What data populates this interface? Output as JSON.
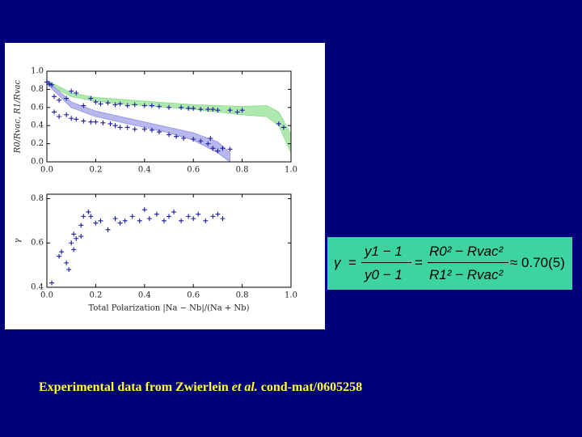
{
  "chart_data": [
    {
      "type": "scatter",
      "y_label": "R0/Rvac, R1/Rvac",
      "xlim": [
        0,
        1
      ],
      "ylim": [
        0,
        1
      ],
      "xticks": [
        {
          "value": 0,
          "label": "0.0"
        },
        {
          "value": 0.2,
          "label": "0.2"
        },
        {
          "value": 0.4,
          "label": "0.4"
        },
        {
          "value": 0.6,
          "label": "0.6"
        },
        {
          "value": 0.8,
          "label": "0.8"
        },
        {
          "value": 1,
          "label": "1.0"
        }
      ],
      "yticks": [
        {
          "value": 0,
          "label": "0.0"
        },
        {
          "value": 0.2,
          "label": "0.2"
        },
        {
          "value": 0.4,
          "label": "0.4"
        },
        {
          "value": 0.6,
          "label": "0.6"
        },
        {
          "value": 0.8,
          "label": "0.8"
        },
        {
          "value": 1,
          "label": "1.0"
        }
      ],
      "bands": [
        {
          "color": "#8fe08f",
          "x": [
            0,
            0.1,
            0.2,
            0.3,
            0.4,
            0.5,
            0.6,
            0.7,
            0.8,
            0.9,
            0.95,
            1.0
          ],
          "lower": [
            0.86,
            0.72,
            0.67,
            0.64,
            0.62,
            0.6,
            0.58,
            0.55,
            0.52,
            0.5,
            0.4,
            0.1
          ],
          "upper": [
            0.9,
            0.76,
            0.71,
            0.69,
            0.67,
            0.65,
            0.63,
            0.62,
            0.61,
            0.62,
            0.55,
            0.3
          ]
        },
        {
          "color": "#9a9ae6",
          "x": [
            0,
            0.1,
            0.2,
            0.3,
            0.4,
            0.5,
            0.6,
            0.7,
            0.75
          ],
          "lower": [
            0.86,
            0.6,
            0.5,
            0.44,
            0.38,
            0.32,
            0.24,
            0.1,
            0.0
          ],
          "upper": [
            0.9,
            0.66,
            0.56,
            0.5,
            0.44,
            0.38,
            0.32,
            0.22,
            0.1
          ]
        }
      ],
      "series": [
        {
          "color": "#1c1ca0",
          "x": [
            0.0,
            0.01,
            0.02,
            0.03,
            0.05,
            0.08,
            0.1,
            0.12,
            0.15,
            0.18,
            0.2,
            0.22,
            0.25,
            0.28,
            0.3,
            0.33,
            0.36,
            0.4,
            0.43,
            0.46,
            0.5,
            0.55,
            0.58,
            0.6,
            0.63,
            0.66,
            0.68,
            0.7,
            0.75,
            0.78,
            0.8,
            0.95,
            0.97
          ],
          "values": [
            0.88,
            0.86,
            0.85,
            0.72,
            0.68,
            0.7,
            0.78,
            0.76,
            0.62,
            0.7,
            0.66,
            0.64,
            0.65,
            0.63,
            0.64,
            0.62,
            0.63,
            0.62,
            0.62,
            0.61,
            0.6,
            0.6,
            0.59,
            0.59,
            0.58,
            0.58,
            0.58,
            0.57,
            0.57,
            0.55,
            0.57,
            0.42,
            0.38
          ]
        },
        {
          "color": "#1c1ca0",
          "x": [
            0.0,
            0.01,
            0.03,
            0.05,
            0.08,
            0.1,
            0.12,
            0.15,
            0.18,
            0.2,
            0.23,
            0.26,
            0.28,
            0.3,
            0.33,
            0.36,
            0.4,
            0.43,
            0.46,
            0.5,
            0.53,
            0.56,
            0.6,
            0.63,
            0.66,
            0.67,
            0.68,
            0.7,
            0.72,
            0.75
          ],
          "values": [
            0.88,
            0.86,
            0.55,
            0.5,
            0.52,
            0.48,
            0.47,
            0.45,
            0.44,
            0.44,
            0.43,
            0.42,
            0.4,
            0.38,
            0.38,
            0.36,
            0.36,
            0.35,
            0.33,
            0.3,
            0.28,
            0.26,
            0.25,
            0.23,
            0.2,
            0.26,
            0.15,
            0.12,
            0.15,
            0.14
          ]
        }
      ]
    },
    {
      "type": "scatter",
      "y_label": "γ",
      "x_label": "Total Polarization |Na − Nb|/(Na + Nb)",
      "xlim": [
        0,
        1
      ],
      "ylim": [
        0.4,
        0.82
      ],
      "xticks": [
        {
          "value": 0,
          "label": "0.0"
        },
        {
          "value": 0.2,
          "label": "0.2"
        },
        {
          "value": 0.4,
          "label": "0.4"
        },
        {
          "value": 0.6,
          "label": "0.6"
        },
        {
          "value": 0.8,
          "label": "0.8"
        },
        {
          "value": 1,
          "label": "1.0"
        }
      ],
      "yticks": [
        0.4,
        0.6,
        0.8
      ],
      "bands": [],
      "series": [
        {
          "color": "#1c1ca0",
          "x": [
            0.02,
            0.05,
            0.06,
            0.08,
            0.09,
            0.1,
            0.11,
            0.11,
            0.12,
            0.14,
            0.14,
            0.15,
            0.17,
            0.18,
            0.2,
            0.22,
            0.25,
            0.28,
            0.3,
            0.32,
            0.35,
            0.38,
            0.4,
            0.42,
            0.45,
            0.48,
            0.5,
            0.52,
            0.55,
            0.58,
            0.6,
            0.62,
            0.65,
            0.68,
            0.7,
            0.72
          ],
          "values": [
            0.42,
            0.54,
            0.56,
            0.51,
            0.48,
            0.6,
            0.57,
            0.64,
            0.62,
            0.68,
            0.63,
            0.72,
            0.74,
            0.72,
            0.69,
            0.7,
            0.66,
            0.71,
            0.69,
            0.7,
            0.72,
            0.7,
            0.75,
            0.71,
            0.73,
            0.7,
            0.72,
            0.74,
            0.7,
            0.72,
            0.71,
            0.73,
            0.7,
            0.72,
            0.73,
            0.71
          ]
        }
      ]
    }
  ],
  "equation": {
    "lhs": "γ",
    "eq": "=",
    "num1": "y1 − 1",
    "den1": "y0 − 1",
    "num2": "R0² − Rvac²",
    "den2": "R1² − Rvac²",
    "rhs": "≈ 0.70(5)"
  },
  "caption": {
    "parts": [
      "Experimental data from Zwierlein ",
      "et al.",
      " cond-mat/0605258"
    ]
  }
}
